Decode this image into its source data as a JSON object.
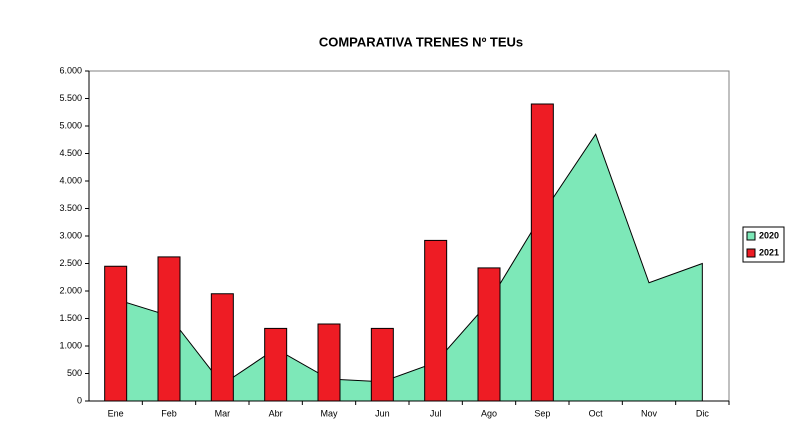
{
  "chart_data": {
    "type": "combo",
    "title": "COMPARATIVA TRENES Nº TEUs",
    "categories": [
      "Ene",
      "Feb",
      "Mar",
      "Abr",
      "May",
      "Jun",
      "Jul",
      "Ago",
      "Sep",
      "Oct",
      "Nov",
      "Dic"
    ],
    "series": [
      {
        "name": "2020",
        "type": "area",
        "color": "#7de8b8",
        "values": [
          1850,
          1550,
          300,
          950,
          400,
          350,
          700,
          1800,
          3400,
          4850,
          2150,
          2500
        ]
      },
      {
        "name": "2021",
        "type": "bar",
        "color": "#ee1c24",
        "values": [
          2450,
          2620,
          1950,
          1320,
          1400,
          1320,
          2920,
          2420,
          5400,
          null,
          null,
          null
        ]
      }
    ],
    "ylim": [
      0,
      6000
    ],
    "yticks": [
      0,
      500,
      {
        "value": 1000,
        "label": "1.000"
      },
      {
        "value": 1500,
        "label": "1.500"
      },
      {
        "value": 2000,
        "label": "2.000"
      },
      {
        "value": 2500,
        "label": "2.500"
      },
      {
        "value": 3000,
        "label": "3.000"
      },
      {
        "value": 3500,
        "label": "3.500"
      },
      {
        "value": 4000,
        "label": "4.000"
      },
      {
        "value": 4500,
        "label": "4.500"
      },
      {
        "value": 5000,
        "label": "5.000"
      },
      {
        "value": 5500,
        "label": "5.500"
      },
      {
        "value": 6000,
        "label": "6.000"
      }
    ],
    "legend": "right"
  }
}
